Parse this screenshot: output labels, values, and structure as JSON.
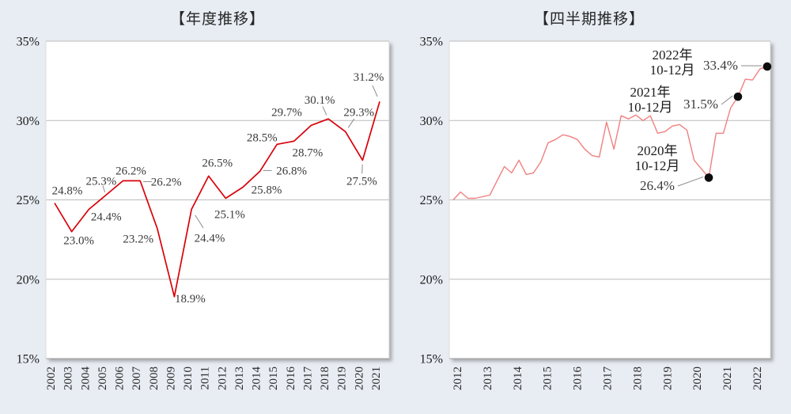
{
  "page": {
    "background_color": "#e8edf3"
  },
  "chart_data": [
    {
      "type": "line",
      "title": "【年度推移】",
      "categories": [
        "2002",
        "2003",
        "2004",
        "2005",
        "2006",
        "2007",
        "2008",
        "2009",
        "2010",
        "2011",
        "2012",
        "2013",
        "2014",
        "2015",
        "2016",
        "2017",
        "2018",
        "2019",
        "2020",
        "2021"
      ],
      "values": [
        24.8,
        23.0,
        24.4,
        25.3,
        26.2,
        26.2,
        23.2,
        18.9,
        24.4,
        26.5,
        25.1,
        25.8,
        26.8,
        28.5,
        28.7,
        29.7,
        30.1,
        29.3,
        27.5,
        31.2
      ],
      "point_labels": [
        "24.8%",
        "23.0%",
        "24.4%",
        "25.3%",
        "26.2%",
        "26.2%",
        "23.2%",
        "18.9%",
        "24.4%",
        "26.5%",
        "25.1%",
        "25.8%",
        "26.8%",
        "28.5%",
        "28.7%",
        "29.7%",
        "30.1%",
        "29.3%",
        "27.5%",
        "31.2%"
      ],
      "ylim": [
        15,
        35
      ],
      "y_ticks": [
        {
          "value": 35,
          "label": "35%"
        },
        {
          "value": 30,
          "label": "30%"
        },
        {
          "value": 25,
          "label": "25%"
        },
        {
          "value": 20,
          "label": "20%"
        },
        {
          "value": 15,
          "label": "15%"
        }
      ],
      "grid": true,
      "legend": "none",
      "line_color": "#d90008"
    },
    {
      "type": "line",
      "title": "【四半期推移】",
      "x_year_labels": [
        "2012",
        "2013",
        "2014",
        "2015",
        "2016",
        "2017",
        "2018",
        "2019",
        "2020",
        "2021",
        "2022"
      ],
      "points_per_year": 4,
      "values": [
        25.0,
        25.5,
        25.1,
        25.1,
        25.2,
        25.3,
        26.2,
        27.1,
        26.7,
        27.5,
        26.6,
        26.7,
        27.4,
        28.6,
        28.8,
        29.1,
        29.0,
        28.8,
        28.2,
        27.8,
        27.7,
        29.9,
        28.2,
        30.3,
        30.1,
        30.35,
        30.0,
        30.3,
        29.2,
        29.3,
        29.65,
        29.75,
        29.4,
        27.5,
        26.95,
        26.4,
        29.2,
        29.2,
        30.8,
        31.5,
        32.6,
        32.55,
        33.25,
        33.4
      ],
      "ylim": [
        15,
        35
      ],
      "y_ticks": [
        {
          "value": 35,
          "label": "35%"
        },
        {
          "value": 30,
          "label": "30%"
        },
        {
          "value": 25,
          "label": "25%"
        },
        {
          "value": 20,
          "label": "20%"
        },
        {
          "value": 15,
          "label": "15%"
        }
      ],
      "grid": true,
      "legend": "none",
      "line_color": "#f08080",
      "marker_color": "#0d0d0d",
      "annotations": [
        {
          "label_lines": [
            "2020年",
            "10-12月"
          ],
          "value_label": "26.4%",
          "point_index": 35,
          "value": 26.4
        },
        {
          "label_lines": [
            "2021年",
            "10-12月"
          ],
          "value_label": "31.5%",
          "point_index": 39,
          "value": 31.5
        },
        {
          "label_lines": [
            "2022年",
            "10-12月"
          ],
          "value_label": "33.4%",
          "point_index": 43,
          "value": 33.4
        }
      ]
    }
  ]
}
